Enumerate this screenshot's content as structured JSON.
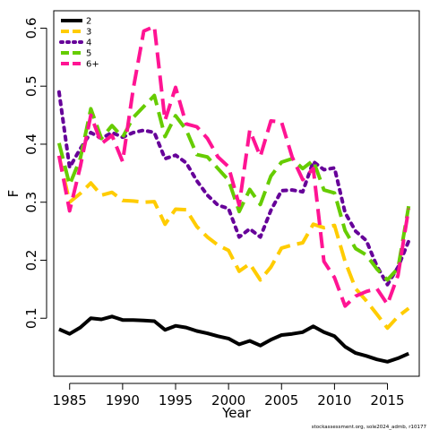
{
  "chart_data": {
    "type": "line",
    "xlabel": "Year",
    "ylabel": "F",
    "xlim": [
      1983.5,
      2018.0
    ],
    "ylim": [
      0.0,
      0.63
    ],
    "xticks": [
      1985,
      1990,
      1995,
      2000,
      2005,
      2010,
      2015
    ],
    "yticks": [
      0.1,
      0.2,
      0.3,
      0.4,
      0.5,
      0.6
    ],
    "legend_position": "top-left",
    "grid": false,
    "footnote": "stockassessment.org, sole2024_admb, r10177",
    "series": [
      {
        "name": "2",
        "color": "#000000",
        "dash": "solid",
        "x": [
          1984,
          1985,
          1986,
          1987,
          1988,
          1989,
          1990,
          1991,
          1992,
          1993,
          1994,
          1995,
          1996,
          1997,
          1998,
          1999,
          2000,
          2001,
          2002,
          2003,
          2004,
          2005,
          2006,
          2007,
          2008,
          2009,
          2010,
          2011,
          2012,
          2013,
          2014,
          2015,
          2016,
          2017
        ],
        "values": [
          0.081,
          0.073,
          0.084,
          0.1,
          0.098,
          0.103,
          0.097,
          0.097,
          0.096,
          0.095,
          0.08,
          0.087,
          0.084,
          0.078,
          0.074,
          0.069,
          0.065,
          0.055,
          0.061,
          0.053,
          0.063,
          0.071,
          0.073,
          0.076,
          0.086,
          0.076,
          0.069,
          0.051,
          0.04,
          0.035,
          0.029,
          0.025,
          0.031,
          0.039
        ]
      },
      {
        "name": "3",
        "color": "#FFCC00",
        "dash": "dashed",
        "x": [
          1984,
          1985,
          1986,
          1987,
          1988,
          1989,
          1990,
          1991,
          1992,
          1993,
          1994,
          1995,
          1996,
          1997,
          1998,
          1999,
          2000,
          2001,
          2002,
          2003,
          2004,
          2005,
          2006,
          2007,
          2008,
          2009,
          2010,
          2011,
          2012,
          2013,
          2014,
          2015,
          2016,
          2017
        ],
        "values": [
          0.38,
          0.3,
          0.315,
          0.333,
          0.312,
          0.317,
          0.303,
          0.302,
          0.3,
          0.301,
          0.262,
          0.288,
          0.287,
          0.258,
          0.24,
          0.226,
          0.217,
          0.181,
          0.194,
          0.166,
          0.188,
          0.221,
          0.226,
          0.23,
          0.262,
          0.256,
          0.26,
          0.198,
          0.151,
          0.13,
          0.107,
          0.083,
          0.103,
          0.117
        ]
      },
      {
        "name": "4",
        "color": "#660099",
        "dash": "dotted",
        "x": [
          1984,
          1985,
          1986,
          1987,
          1988,
          1989,
          1990,
          1991,
          1992,
          1993,
          1994,
          1995,
          1996,
          1997,
          1998,
          1999,
          2000,
          2001,
          2002,
          2003,
          2004,
          2005,
          2006,
          2007,
          2008,
          2009,
          2010,
          2011,
          2012,
          2013,
          2014,
          2015,
          2016,
          2017
        ],
        "values": [
          0.49,
          0.36,
          0.392,
          0.42,
          0.41,
          0.42,
          0.412,
          0.42,
          0.424,
          0.42,
          0.375,
          0.381,
          0.368,
          0.337,
          0.312,
          0.295,
          0.289,
          0.24,
          0.254,
          0.24,
          0.286,
          0.32,
          0.321,
          0.318,
          0.37,
          0.356,
          0.359,
          0.282,
          0.25,
          0.234,
          0.19,
          0.158,
          0.188,
          0.233
        ]
      },
      {
        "name": "5",
        "color": "#66CC00",
        "dash": "dashed",
        "x": [
          1984,
          1985,
          1986,
          1987,
          1988,
          1989,
          1990,
          1991,
          1992,
          1993,
          1994,
          1995,
          1996,
          1997,
          1998,
          1999,
          2000,
          2001,
          2002,
          2003,
          2004,
          2005,
          2006,
          2007,
          2008,
          2009,
          2010,
          2011,
          2012,
          2013,
          2014,
          2015,
          2016,
          2017
        ],
        "values": [
          0.402,
          0.33,
          0.375,
          0.461,
          0.41,
          0.432,
          0.412,
          0.446,
          0.465,
          0.484,
          0.413,
          0.449,
          0.425,
          0.382,
          0.378,
          0.358,
          0.338,
          0.284,
          0.322,
          0.296,
          0.345,
          0.369,
          0.375,
          0.358,
          0.372,
          0.321,
          0.316,
          0.251,
          0.22,
          0.209,
          0.185,
          0.166,
          0.186,
          0.293
        ]
      },
      {
        "name": "6+",
        "color": "#FF1493",
        "dash": "dashed",
        "x": [
          1984,
          1985,
          1986,
          1987,
          1988,
          1989,
          1990,
          1991,
          1992,
          1993,
          1994,
          1995,
          1996,
          1997,
          1998,
          1999,
          2000,
          2001,
          2002,
          2003,
          2004,
          2005,
          2006,
          2007,
          2008,
          2009,
          2010,
          2011,
          2012,
          2013,
          2014,
          2015,
          2016,
          2017
        ],
        "values": [
          0.38,
          0.285,
          0.361,
          0.45,
          0.401,
          0.415,
          0.37,
          0.495,
          0.595,
          0.603,
          0.441,
          0.498,
          0.435,
          0.43,
          0.41,
          0.378,
          0.361,
          0.295,
          0.424,
          0.379,
          0.44,
          0.438,
          0.378,
          0.339,
          0.358,
          0.198,
          0.17,
          0.121,
          0.138,
          0.146,
          0.151,
          0.124,
          0.174,
          0.289
        ]
      }
    ]
  }
}
